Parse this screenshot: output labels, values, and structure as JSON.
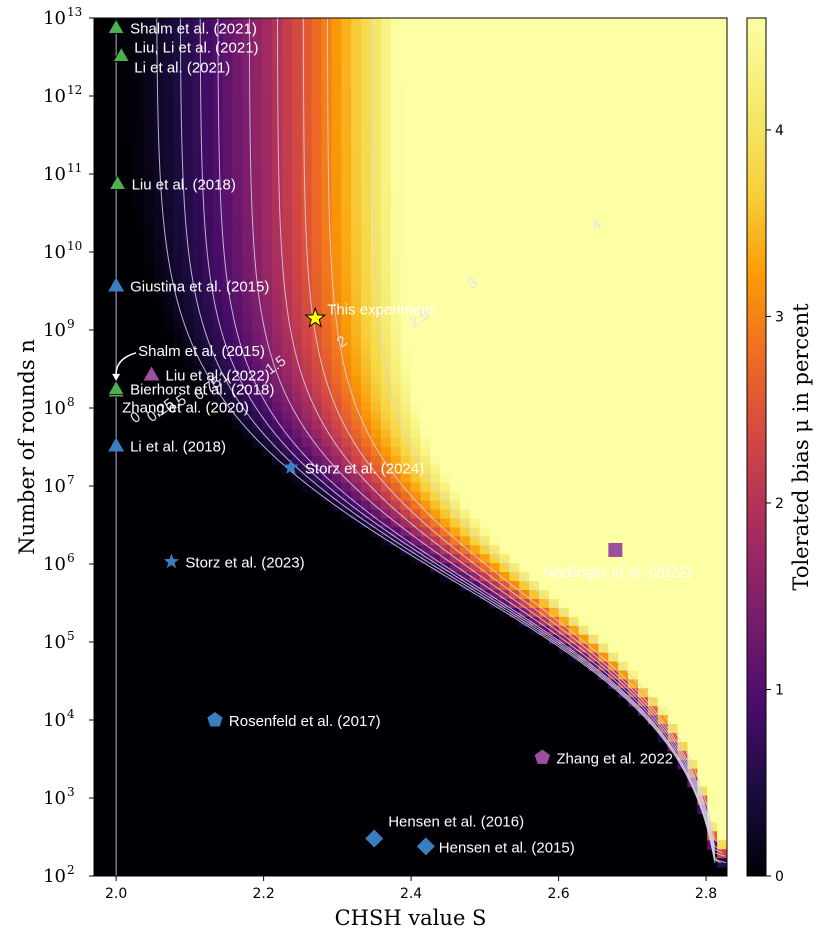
{
  "chart_data": {
    "type": "scatter",
    "xlabel": "CHSH value S",
    "ylabel": "Number of rounds n",
    "colorbar_label": "Tolerated bias μ in percent",
    "xlim": [
      1.97,
      2.8284
    ],
    "ylim_log10": [
      2,
      13
    ],
    "x_ticks": [
      2.0,
      2.2,
      2.4,
      2.6,
      2.8
    ],
    "x_tick_labels": [
      "2.0",
      "2.2",
      "2.4",
      "2.6",
      "2.8"
    ],
    "y_ticks_exp": [
      2,
      3,
      4,
      5,
      6,
      7,
      8,
      9,
      10,
      11,
      12,
      13
    ],
    "y_tick_base": "10",
    "colorbar_range": [
      0,
      4.6
    ],
    "colorbar_ticks": [
      0,
      1,
      2,
      3,
      4
    ],
    "colorbar_tick_labels": [
      "0",
      "1",
      "2",
      "3",
      "4"
    ],
    "colormap": "inferno",
    "contour_levels": [
      0,
      0.25,
      0.5,
      0.75,
      1,
      1.5,
      2,
      2.5,
      3,
      4
    ],
    "contour_labels": [
      "0",
      "0.25",
      "0.5",
      "0.75",
      "1",
      "1.5",
      "2",
      "2.5",
      "3",
      "4"
    ],
    "marker_colors": {
      "green": "#4caf50",
      "blue": "#3b7ec0",
      "purple": "#9c4f9f",
      "yellow": "#ffff00"
    },
    "points": [
      {
        "label": "Shalm et al. (2021)",
        "x": 2.0,
        "log10n": 12.88,
        "marker": "triangle",
        "color": "green"
      },
      {
        "label": "Liu, Li et al. (2021)",
        "x": 2.007,
        "log10n": 12.52,
        "marker": "triangle",
        "color": "green"
      },
      {
        "label": "Li et al. (2021)",
        "x": 2.007,
        "log10n": 12.52,
        "marker": "triangle",
        "color": "green"
      },
      {
        "label": "Liu et al. (2018)",
        "x": 2.002,
        "log10n": 10.88,
        "marker": "triangle",
        "color": "green"
      },
      {
        "label": "Giustina et al. (2015)",
        "x": 2.0,
        "log10n": 9.57,
        "marker": "triangle",
        "color": "blue"
      },
      {
        "label": "This experiment",
        "x": 2.27,
        "log10n": 9.15,
        "marker": "star",
        "color": "yellow"
      },
      {
        "label": "Shalm et al. (2015)",
        "x": 2.0,
        "log10n": 8.22,
        "marker": "triangle",
        "color": "green"
      },
      {
        "label": "Liu et al. (2022)",
        "x": 2.048,
        "log10n": 8.43,
        "marker": "triangle",
        "color": "purple"
      },
      {
        "label": "Bierhorst et al. (2018)",
        "x": 2.0,
        "log10n": 8.25,
        "marker": "triangle",
        "color": "green"
      },
      {
        "label": "Zhang et al. (2020)",
        "x": 2.0,
        "log10n": 8.25,
        "marker": "triangle",
        "color": "green"
      },
      {
        "label": "Li et al. (2018)",
        "x": 2.0,
        "log10n": 7.52,
        "marker": "triangle",
        "color": "blue"
      },
      {
        "label": "Storz et al. (2024)",
        "x": 2.237,
        "log10n": 7.24,
        "marker": "star",
        "color": "blue"
      },
      {
        "label": "Nadlinger et al. (2022)",
        "x": 2.677,
        "log10n": 6.18,
        "marker": "square",
        "color": "purple"
      },
      {
        "label": "Storz et al. (2023)",
        "x": 2.075,
        "log10n": 6.03,
        "marker": "star",
        "color": "blue"
      },
      {
        "label": "Rosenfeld et al. (2017)",
        "x": 2.134,
        "log10n": 4.0,
        "marker": "pentagon",
        "color": "blue"
      },
      {
        "label": "Zhang et al. 2022",
        "x": 2.578,
        "log10n": 3.52,
        "marker": "pentagon",
        "color": "purple"
      },
      {
        "label": "Hensen et al. (2016)",
        "x": 2.35,
        "log10n": 2.48,
        "marker": "diamond",
        "color": "blue"
      },
      {
        "label": "Hensen et al. (2015)",
        "x": 2.42,
        "log10n": 2.38,
        "marker": "diamond",
        "color": "blue"
      }
    ]
  }
}
